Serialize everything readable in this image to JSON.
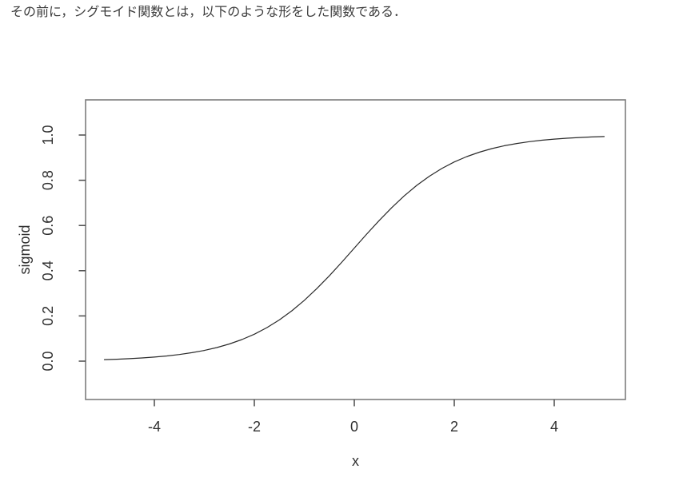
{
  "page": {
    "intro_text": "その前に，シグモイド関数とは，以下のような形をした関数である．"
  },
  "chart_data": {
    "type": "line",
    "title": "",
    "xlabel": "x",
    "ylabel": "sigmoid",
    "xlim": [
      -5.4,
      5.4
    ],
    "ylim": [
      -0.17,
      1.16
    ],
    "grid": false,
    "legend": false,
    "x_ticks": [
      -4,
      -2,
      0,
      2,
      4
    ],
    "x_tick_labels": [
      "-4",
      "-2",
      "0",
      "2",
      "4"
    ],
    "y_ticks": [
      0.0,
      0.2,
      0.4,
      0.6,
      0.8,
      1.0
    ],
    "y_tick_labels": [
      "0.0",
      "0.2",
      "0.4",
      "0.6",
      "0.8",
      "1.0"
    ],
    "series": [
      {
        "name": "sigmoid",
        "function": "y = 1 / (1 + exp(-x))",
        "x": [
          -5,
          -4.75,
          -4.5,
          -4.25,
          -4,
          -3.75,
          -3.5,
          -3.25,
          -3,
          -2.75,
          -2.5,
          -2.25,
          -2,
          -1.75,
          -1.5,
          -1.25,
          -1,
          -0.75,
          -0.5,
          -0.25,
          0,
          0.25,
          0.5,
          0.75,
          1,
          1.25,
          1.5,
          1.75,
          2,
          2.25,
          2.5,
          2.75,
          3,
          3.25,
          3.5,
          3.75,
          4,
          4.25,
          4.5,
          4.75,
          5
        ],
        "y": [
          0.0067,
          0.0086,
          0.011,
          0.0141,
          0.018,
          0.023,
          0.0293,
          0.0373,
          0.0474,
          0.0601,
          0.0759,
          0.0953,
          0.1192,
          0.148,
          0.1824,
          0.2227,
          0.2689,
          0.3208,
          0.3775,
          0.4378,
          0.5,
          0.5622,
          0.6225,
          0.6792,
          0.7311,
          0.7773,
          0.8176,
          0.852,
          0.8808,
          0.9047,
          0.9241,
          0.9399,
          0.9526,
          0.9627,
          0.9707,
          0.977,
          0.982,
          0.9859,
          0.989,
          0.9914,
          0.9933
        ]
      }
    ],
    "colors": {
      "curve": "#2a2a2a",
      "box": "#7d7d7d",
      "tick": "#4a4a4a",
      "label": "#303030"
    }
  }
}
